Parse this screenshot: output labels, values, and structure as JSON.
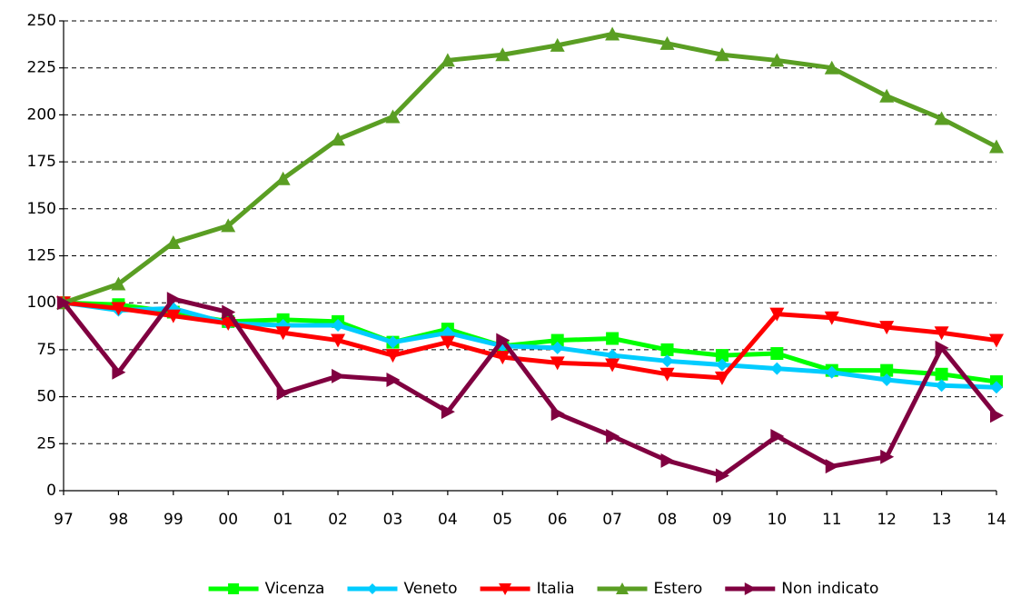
{
  "chart_data": {
    "type": "line",
    "categories": [
      "97",
      "98",
      "99",
      "00",
      "01",
      "02",
      "03",
      "04",
      "05",
      "06",
      "07",
      "08",
      "09",
      "10",
      "11",
      "12",
      "13",
      "14"
    ],
    "series": [
      {
        "name": "Vicenza",
        "color": "#00ff00",
        "marker": "square",
        "values": [
          100,
          99,
          95,
          90,
          91,
          90,
          79,
          86,
          77,
          80,
          81,
          75,
          72,
          73,
          64,
          64,
          62,
          58
        ]
      },
      {
        "name": "Veneto",
        "color": "#00ccff",
        "marker": "diamond",
        "values": [
          100,
          96,
          97,
          89,
          88,
          88,
          79,
          84,
          77,
          76,
          72,
          69,
          67,
          65,
          63,
          59,
          56,
          55
        ]
      },
      {
        "name": "Italia",
        "color": "#ff0000",
        "marker": "triangle-down",
        "values": [
          100,
          97,
          93,
          89,
          84,
          80,
          72,
          79,
          71,
          68,
          67,
          62,
          60,
          94,
          92,
          87,
          84,
          80
        ]
      },
      {
        "name": "Estero",
        "color": "#5a9e23",
        "marker": "triangle-up",
        "values": [
          100,
          110,
          132,
          141,
          166,
          187,
          199,
          229,
          232,
          237,
          243,
          238,
          232,
          229,
          225,
          210,
          198,
          183
        ]
      },
      {
        "name": "Non indicato",
        "color": "#800040",
        "marker": "triangle-right",
        "values": [
          100,
          63,
          102,
          95,
          52,
          61,
          59,
          42,
          80,
          41,
          29,
          16,
          8,
          29,
          13,
          18,
          76,
          40
        ]
      }
    ],
    "ylim": [
      0,
      250
    ],
    "yticks": [
      0,
      25,
      50,
      75,
      100,
      125,
      150,
      175,
      200,
      225,
      250
    ],
    "grid": true,
    "legend": "bottom"
  }
}
